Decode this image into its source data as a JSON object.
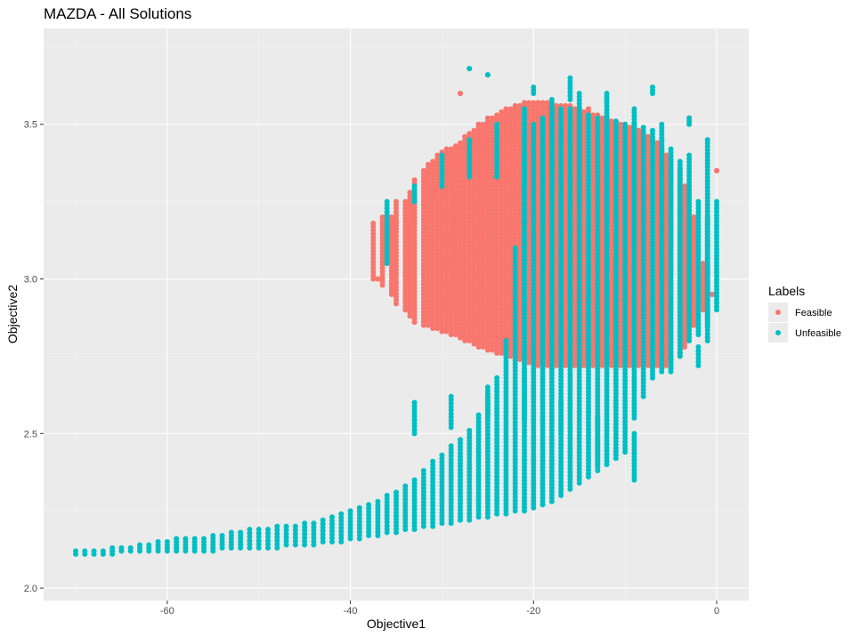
{
  "chart_data": {
    "type": "scatter",
    "title": "MAZDA - All Solutions",
    "xlabel": "Objective1",
    "ylabel": "Objective2",
    "xlim": [
      -73.5,
      3.5
    ],
    "ylim": [
      1.96,
      3.81
    ],
    "x_ticks": [
      -60,
      -40,
      -20,
      0
    ],
    "x_tick_labels": [
      "-60",
      "-40",
      "-20",
      "0"
    ],
    "y_ticks": [
      2.0,
      2.5,
      3.0,
      3.5
    ],
    "y_tick_labels": [
      "2.0",
      "2.5",
      "3.0",
      "3.5"
    ],
    "grid": true,
    "legend": {
      "title": "Labels",
      "placement": "right"
    },
    "colors": {
      "panel_background": "#ebebeb",
      "grid_major": "#ffffff",
      "feasible": "#F8766D",
      "unfeasible": "#00BFC4"
    },
    "series": [
      {
        "name": "Feasible",
        "color": "#F8766D",
        "x": [
          -37.5,
          -36.5,
          -35.5,
          -35,
          -34,
          -33.5,
          -33,
          -32,
          -31.5,
          -31,
          -30.5,
          -30,
          -29.5,
          -29,
          -28.5,
          -28,
          -27.5,
          -27,
          -26.5,
          -26,
          -25.5,
          -25,
          -24.5,
          -24,
          -23.5,
          -23,
          -22.5,
          -22,
          -21.5,
          -21,
          -20.5,
          -20,
          -19.5,
          -19,
          -18.5,
          -18,
          -17.5,
          -17,
          -16.5,
          -16,
          -15.5,
          -15,
          -14.5,
          -14,
          -13.5,
          -13,
          -12.5,
          -12,
          -11.5,
          -11,
          -10.5,
          -10,
          -9.5,
          -9,
          -8.5,
          -8,
          -7.5,
          -7,
          -6.5,
          -6,
          -5.5,
          -5,
          -4,
          -3.5,
          -2.5,
          -1.5,
          -0.5,
          0,
          -28,
          -31,
          -33,
          -35,
          -37,
          -26,
          -30,
          -22,
          -18,
          -14,
          -9,
          -3
        ],
        "y_min": [
          3.0,
          2.98,
          2.95,
          2.92,
          2.9,
          2.88,
          2.86,
          2.85,
          2.85,
          2.84,
          2.84,
          2.83,
          2.83,
          2.82,
          2.82,
          2.81,
          2.8,
          2.8,
          2.79,
          2.78,
          2.78,
          2.77,
          2.77,
          2.76,
          2.76,
          2.75,
          2.75,
          2.74,
          2.74,
          2.73,
          2.73,
          2.73,
          2.72,
          2.72,
          2.72,
          2.72,
          2.72,
          2.72,
          2.72,
          2.72,
          2.72,
          2.72,
          2.72,
          2.72,
          2.72,
          2.72,
          2.72,
          2.72,
          2.72,
          2.72,
          2.72,
          2.72,
          2.72,
          2.72,
          2.72,
          2.72,
          2.72,
          2.72,
          2.72,
          2.72,
          2.72,
          2.72,
          2.75,
          2.78,
          2.85,
          2.9,
          2.95,
          3.35,
          3.6,
          3.34,
          3.2,
          3.18,
          3.0,
          3.5,
          3.4,
          3.45,
          3.52,
          3.55,
          3.5,
          3.52
        ],
        "y_max": [
          3.18,
          3.2,
          3.2,
          3.25,
          3.25,
          3.28,
          3.32,
          3.35,
          3.37,
          3.38,
          3.4,
          3.41,
          3.42,
          3.42,
          3.43,
          3.44,
          3.46,
          3.47,
          3.48,
          3.49,
          3.5,
          3.52,
          3.52,
          3.53,
          3.54,
          3.55,
          3.55,
          3.56,
          3.56,
          3.57,
          3.57,
          3.57,
          3.57,
          3.57,
          3.57,
          3.57,
          3.56,
          3.56,
          3.56,
          3.56,
          3.55,
          3.55,
          3.54,
          3.54,
          3.53,
          3.53,
          3.52,
          3.52,
          3.51,
          3.51,
          3.5,
          3.5,
          3.49,
          3.49,
          3.48,
          3.47,
          3.46,
          3.45,
          3.44,
          3.42,
          3.4,
          3.38,
          3.35,
          3.3,
          3.2,
          3.05,
          2.95,
          3.35,
          3.6,
          3.34,
          3.2,
          3.18,
          3.0,
          3.5,
          3.4,
          3.45,
          3.52,
          3.55,
          3.5,
          3.52
        ]
      },
      {
        "name": "Unfeasible",
        "color": "#00BFC4",
        "x": [
          -70,
          -69,
          -68,
          -67,
          -66,
          -65,
          -64,
          -63,
          -62,
          -61,
          -60,
          -59,
          -58,
          -57,
          -56,
          -55,
          -54,
          -53,
          -52,
          -51,
          -50,
          -49,
          -48,
          -47,
          -46,
          -45,
          -44,
          -43,
          -42,
          -41,
          -40,
          -39,
          -38,
          -37,
          -36,
          -35,
          -34,
          -33,
          -32,
          -31,
          -30,
          -29,
          -28,
          -27,
          -26,
          -25,
          -24,
          -23,
          -22,
          -21,
          -20,
          -19,
          -18,
          -17,
          -16,
          -15,
          -14,
          -13,
          -12,
          -11,
          -10,
          -9,
          -8,
          -7,
          -6,
          -5,
          -4,
          -3,
          -2,
          -1,
          0,
          -36,
          -33,
          -30,
          -27,
          -24,
          -21,
          -18,
          -15,
          -12,
          -9,
          -6,
          -3,
          -1,
          -33,
          -29,
          -25,
          -21,
          -17,
          -13,
          -9,
          -5,
          -2,
          -27,
          -25,
          -20,
          -16,
          -12,
          -7,
          -3
        ],
        "y_min": [
          2.11,
          2.11,
          2.11,
          2.11,
          2.11,
          2.12,
          2.12,
          2.12,
          2.12,
          2.12,
          2.12,
          2.12,
          2.12,
          2.12,
          2.12,
          2.12,
          2.13,
          2.13,
          2.13,
          2.13,
          2.13,
          2.13,
          2.13,
          2.14,
          2.14,
          2.14,
          2.14,
          2.15,
          2.15,
          2.15,
          2.16,
          2.16,
          2.17,
          2.17,
          2.18,
          2.18,
          2.19,
          2.19,
          2.2,
          2.2,
          2.21,
          2.21,
          2.22,
          2.22,
          2.23,
          2.23,
          2.24,
          2.24,
          2.25,
          2.25,
          2.26,
          2.27,
          2.28,
          2.3,
          2.32,
          2.34,
          2.36,
          2.38,
          2.4,
          2.42,
          2.44,
          2.55,
          2.62,
          2.68,
          2.7,
          2.72,
          2.75,
          2.8,
          2.82,
          2.85,
          2.9,
          3.05,
          3.25,
          3.3,
          3.33,
          3.33,
          3.3,
          3.25,
          3.25,
          3.2,
          3.1,
          3.0,
          2.9,
          2.8,
          2.5,
          2.52,
          2.55,
          2.55,
          2.5,
          2.4,
          2.35,
          2.7,
          2.72,
          3.68,
          3.66,
          3.6,
          3.58,
          3.58,
          3.6,
          3.5
        ],
        "y_max": [
          2.12,
          2.12,
          2.12,
          2.12,
          2.13,
          2.13,
          2.13,
          2.14,
          2.14,
          2.15,
          2.15,
          2.16,
          2.16,
          2.16,
          2.16,
          2.17,
          2.17,
          2.18,
          2.18,
          2.19,
          2.19,
          2.19,
          2.2,
          2.2,
          2.2,
          2.21,
          2.21,
          2.22,
          2.23,
          2.24,
          2.25,
          2.26,
          2.27,
          2.28,
          2.3,
          2.31,
          2.33,
          2.35,
          2.38,
          2.41,
          2.43,
          2.46,
          2.48,
          2.51,
          2.56,
          2.62,
          2.68,
          2.8,
          3.1,
          3.4,
          3.5,
          3.52,
          3.55,
          3.55,
          3.55,
          3.55,
          3.53,
          3.52,
          3.52,
          3.51,
          3.5,
          3.5,
          3.49,
          3.48,
          3.45,
          3.42,
          3.38,
          3.3,
          3.25,
          3.2,
          3.25,
          3.25,
          3.3,
          3.4,
          3.45,
          3.5,
          3.55,
          3.58,
          3.6,
          3.58,
          3.55,
          3.5,
          3.4,
          3.45,
          2.6,
          2.62,
          2.65,
          2.7,
          2.6,
          2.55,
          2.5,
          2.75,
          2.78,
          3.68,
          3.66,
          3.62,
          3.65,
          3.6,
          3.62,
          3.52
        ]
      }
    ]
  }
}
